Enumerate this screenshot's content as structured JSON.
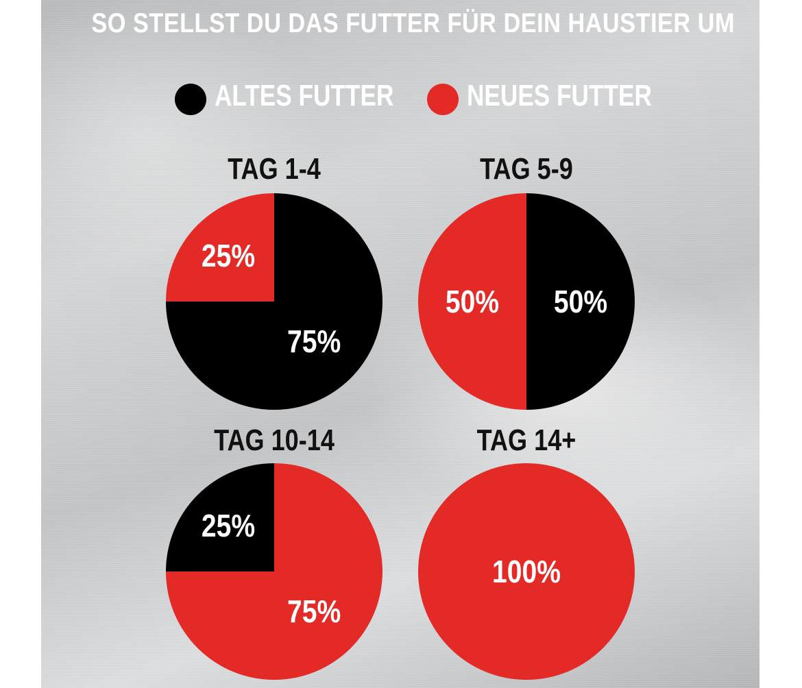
{
  "title": "SO STELLST DU DAS FUTTER FÜR DEIN HAUSTIER UM",
  "legend": [
    {
      "label": "ALTES FUTTER",
      "color": "#000000"
    },
    {
      "label": "NEUES FUTTER",
      "color": "#e32a26"
    }
  ],
  "chart_data": [
    {
      "type": "pie",
      "title": "TAG 1-4",
      "slices": [
        {
          "name": "ALTES FUTTER",
          "value": 75,
          "label": "75%",
          "color": "#000000"
        },
        {
          "name": "NEUES FUTTER",
          "value": 25,
          "label": "25%",
          "color": "#e32a26"
        }
      ]
    },
    {
      "type": "pie",
      "title": "TAG 5-9",
      "slices": [
        {
          "name": "ALTES FUTTER",
          "value": 50,
          "label": "50%",
          "color": "#000000"
        },
        {
          "name": "NEUES FUTTER",
          "value": 50,
          "label": "50%",
          "color": "#e32a26"
        }
      ]
    },
    {
      "type": "pie",
      "title": "TAG 10-14",
      "slices": [
        {
          "name": "NEUES FUTTER",
          "value": 75,
          "label": "75%",
          "color": "#e32a26"
        },
        {
          "name": "ALTES FUTTER",
          "value": 25,
          "label": "25%",
          "color": "#000000"
        }
      ]
    },
    {
      "type": "pie",
      "title": "TAG 14+",
      "slices": [
        {
          "name": "NEUES FUTTER",
          "value": 100,
          "label": "100%",
          "color": "#e32a26"
        }
      ]
    }
  ]
}
